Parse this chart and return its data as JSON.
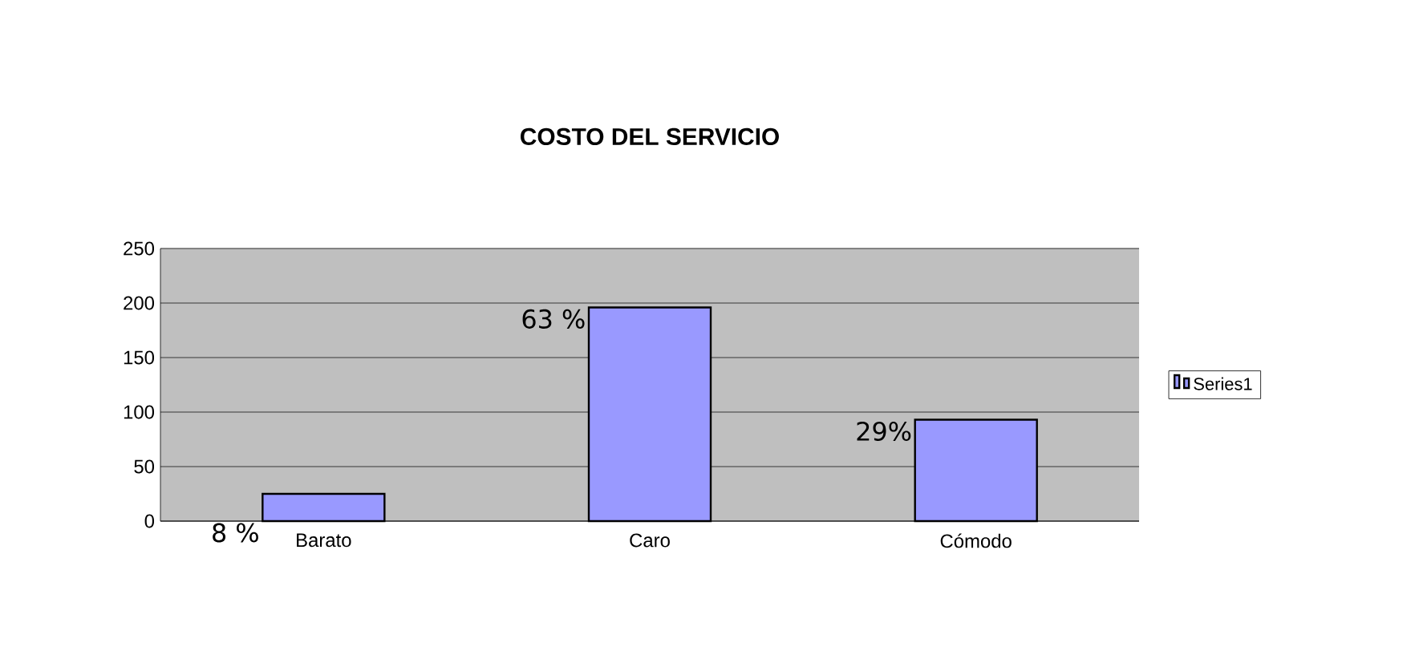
{
  "chart_data": {
    "type": "bar",
    "title": "COSTO DEL SERVICIO",
    "categories": [
      "Barato",
      "Caro",
      "Cómodo"
    ],
    "series": [
      {
        "name": "Series1",
        "color": "#9999ff",
        "values": [
          25,
          196,
          93
        ]
      }
    ],
    "annotations": [
      {
        "text": "8 %",
        "x": "Barato",
        "y": 0
      },
      {
        "text": "63 %",
        "x": "Caro",
        "y": 196
      },
      {
        "text": "29%",
        "x": "Cómodo",
        "y": 93
      }
    ],
    "ylim": [
      0,
      250
    ],
    "yticks": [
      0,
      50,
      100,
      150,
      200,
      250
    ],
    "grid": "y",
    "legend": "right"
  }
}
